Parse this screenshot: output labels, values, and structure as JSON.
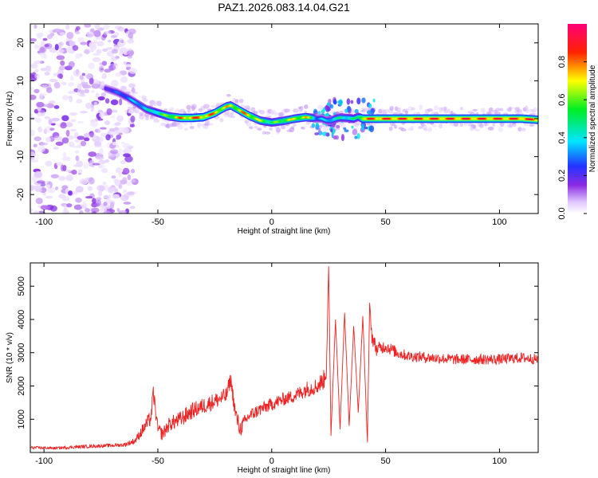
{
  "figure_title": "PAZ1.2026.083.14.04.G21",
  "chart_data": [
    {
      "type": "heatmap",
      "title": "PAZ1.2026.083.14.04.G21",
      "xlabel": "Height of straight line (km)",
      "ylabel": "Frequency (Hz)",
      "xlim": [
        -106,
        117
      ],
      "ylim": [
        -25,
        25
      ],
      "xticks": [
        -100,
        -50,
        0,
        50,
        100
      ],
      "yticks": [
        -20,
        -10,
        0,
        10,
        20
      ],
      "colorbar": {
        "label": "Normalized spectral amplitude",
        "range": [
          0,
          1
        ],
        "ticks": [
          "0.0",
          "0.2",
          "0.4",
          "0.6",
          "0.8"
        ],
        "colormap": "white-purple-blue-cyan-green-yellow-red-magenta"
      },
      "ridge": {
        "description": "dominant frequency vs height",
        "x": [
          -73,
          -68,
          -63,
          -59,
          -55,
          -50,
          -45,
          -40,
          -35,
          -30,
          -25,
          -20,
          -18,
          -15,
          -10,
          -5,
          0,
          5,
          10,
          15,
          18,
          20,
          22,
          24,
          26,
          28,
          30,
          33,
          36,
          38,
          40,
          50,
          60,
          70,
          80,
          90,
          100,
          110,
          117
        ],
        "freq": [
          8,
          7,
          5.5,
          4,
          2.5,
          1.5,
          0.6,
          0.2,
          0.2,
          0.4,
          1.5,
          3.2,
          3.5,
          2.5,
          0.8,
          -0.5,
          -1,
          -0.6,
          0,
          0.4,
          0.2,
          0,
          0,
          -0.5,
          -0.5,
          0,
          0.3,
          0.2,
          0,
          0.5,
          0,
          0,
          0,
          0,
          0,
          0,
          0,
          0,
          -0.3
        ],
        "amplitude": [
          0.25,
          0.3,
          0.35,
          0.4,
          0.45,
          0.55,
          0.7,
          0.85,
          0.9,
          0.9,
          0.85,
          0.8,
          0.75,
          0.8,
          0.85,
          0.7,
          0.6,
          0.7,
          0.75,
          0.8,
          0.6,
          0.35,
          0.4,
          0.4,
          0.45,
          0.5,
          0.5,
          0.5,
          0.55,
          0.5,
          0.9,
          0.95,
          0.95,
          0.95,
          0.95,
          0.95,
          0.95,
          0.95,
          0.95
        ]
      },
      "noise_region_x": [
        -106,
        -60
      ]
    },
    {
      "type": "line",
      "xlabel": "Height of straight line (km)",
      "ylabel": "SNR (10 * v/v)",
      "xlim": [
        -106,
        117
      ],
      "ylim": [
        0,
        5700
      ],
      "xticks": [
        -100,
        -50,
        0,
        50,
        100
      ],
      "yticks": [
        1000,
        2000,
        3000,
        4000,
        5000
      ],
      "series": [
        {
          "name": "SNR",
          "color": "#ee2222",
          "x": [
            -106,
            -95,
            -85,
            -75,
            -65,
            -60,
            -56,
            -53,
            -52,
            -50,
            -48,
            -45,
            -40,
            -35,
            -30,
            -25,
            -20,
            -18,
            -16,
            -14,
            -10,
            -5,
            0,
            5,
            10,
            15,
            20,
            23,
            24,
            25,
            26,
            28,
            30,
            32,
            34,
            36,
            38,
            40,
            42,
            43,
            44,
            46,
            50,
            55,
            60,
            70,
            80,
            90,
            100,
            110,
            117
          ],
          "y": [
            150,
            130,
            170,
            200,
            230,
            350,
            750,
            1050,
            1800,
            700,
            550,
            850,
            1000,
            1250,
            1400,
            1550,
            1700,
            2200,
            1200,
            700,
            1100,
            1300,
            1450,
            1600,
            1700,
            1900,
            2000,
            2200,
            2500,
            5600,
            500,
            4000,
            700,
            4200,
            800,
            3800,
            1200,
            4100,
            300,
            4500,
            3500,
            3100,
            3200,
            3000,
            2900,
            2850,
            2800,
            2800,
            2800,
            2850,
            2800
          ],
          "noise": [
            40,
            40,
            50,
            50,
            60,
            100,
            200,
            250,
            250,
            200,
            200,
            220,
            250,
            250,
            250,
            250,
            250,
            250,
            250,
            250,
            200,
            200,
            200,
            200,
            200,
            250,
            250,
            300,
            300,
            0,
            0,
            0,
            0,
            0,
            0,
            0,
            0,
            0,
            0,
            0,
            250,
            200,
            200,
            180,
            160,
            160,
            160,
            160,
            160,
            160,
            160
          ]
        }
      ]
    }
  ]
}
